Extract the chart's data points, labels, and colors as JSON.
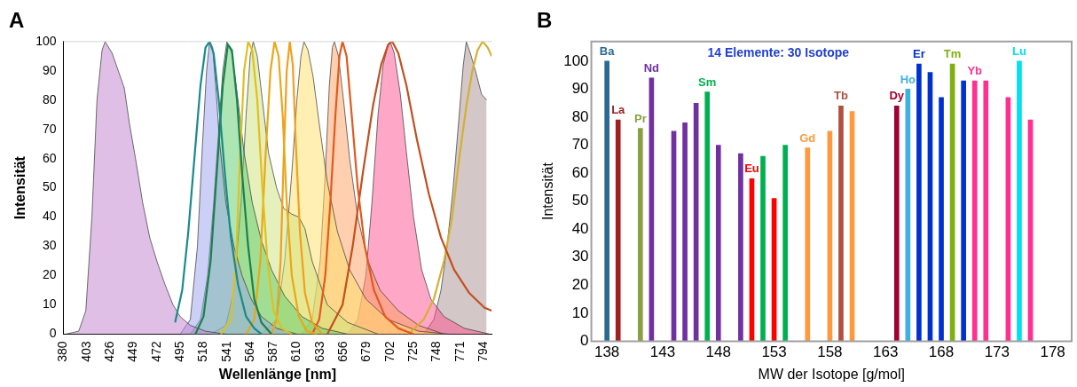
{
  "chart_data": [
    {
      "type": "area",
      "title": "A",
      "xlabel": "Wellenlänge [nm]",
      "ylabel": "Intensität",
      "xlim": [
        380,
        802
      ],
      "xticks": [
        380,
        403,
        426,
        449,
        472,
        495,
        518,
        541,
        564,
        587,
        610,
        633,
        656,
        679,
        702,
        725,
        748,
        771,
        794
      ],
      "ylim": [
        0,
        100
      ],
      "yticks": [
        0,
        10,
        20,
        30,
        40,
        50,
        60,
        70,
        80,
        90,
        100
      ],
      "legend": false,
      "series": [
        {
          "color": "#c27fd0",
          "x": [
            382,
            395,
            402,
            408,
            413,
            418,
            421,
            428,
            433,
            440,
            445,
            451,
            458,
            465,
            472,
            480,
            488,
            495,
            505,
            520,
            540
          ],
          "values": [
            0,
            1,
            8,
            40,
            80,
            97,
            100,
            96,
            91,
            84,
            72,
            60,
            45,
            33,
            25,
            17,
            10,
            6,
            3,
            1,
            0
          ]
        },
        {
          "color": "#9aa2ee",
          "x": [
            495,
            505,
            512,
            517,
            521,
            524,
            527,
            530,
            534,
            540,
            548,
            556,
            565,
            575,
            590,
            610
          ],
          "values": [
            0,
            5,
            30,
            65,
            90,
            100,
            98,
            85,
            65,
            45,
            30,
            20,
            12,
            6,
            2,
            0
          ]
        },
        {
          "type": "line",
          "color": "#1a8a8a",
          "x": [
            490,
            497,
            503,
            509,
            515,
            520,
            524,
            528,
            533,
            539,
            545,
            552,
            560,
            568,
            575
          ],
          "values": [
            4,
            15,
            35,
            60,
            85,
            98,
            100,
            96,
            80,
            55,
            33,
            17,
            6,
            2,
            0
          ]
        },
        {
          "color": "#5ccc6a",
          "x": [
            505,
            515,
            522,
            528,
            533,
            537,
            541,
            546,
            552,
            558,
            566,
            575,
            585,
            598,
            615,
            635,
            660
          ],
          "values": [
            0,
            5,
            20,
            45,
            70,
            90,
            100,
            96,
            80,
            62,
            45,
            32,
            22,
            13,
            6,
            2,
            0
          ]
        },
        {
          "type": "line",
          "color": "#1d7f4f",
          "x": [
            510,
            518,
            525,
            531,
            537,
            542,
            546,
            551,
            556,
            562,
            568,
            575,
            585
          ],
          "values": [
            0,
            6,
            25,
            55,
            85,
            99,
            97,
            80,
            55,
            30,
            12,
            4,
            0
          ]
        },
        {
          "color": "#cde27a",
          "x": [
            525,
            540,
            548,
            555,
            560,
            564,
            567,
            571,
            576,
            582,
            590,
            597,
            605,
            612,
            618,
            625,
            640,
            660,
            690
          ],
          "values": [
            0,
            3,
            15,
            45,
            75,
            95,
            100,
            95,
            80,
            62,
            50,
            43,
            41,
            40,
            36,
            25,
            10,
            4,
            0
          ]
        },
        {
          "type": "line",
          "color": "#e0c020",
          "x": [
            535,
            545,
            550,
            554,
            558,
            562,
            566,
            571,
            576,
            581,
            587,
            595,
            605
          ],
          "values": [
            0,
            5,
            25,
            60,
            90,
            100,
            97,
            80,
            50,
            25,
            8,
            2,
            0
          ]
        },
        {
          "type": "line",
          "color": "#e8a818",
          "x": [
            560,
            568,
            574,
            579,
            584,
            588,
            592,
            596,
            600,
            605,
            612,
            620,
            630
          ],
          "values": [
            0,
            5,
            25,
            60,
            90,
            100,
            95,
            75,
            45,
            20,
            6,
            1,
            0
          ]
        },
        {
          "type": "line",
          "color": "#f0a020",
          "x": [
            585,
            590,
            594,
            597,
            600,
            603,
            606,
            609,
            613,
            618,
            625,
            635
          ],
          "values": [
            0,
            5,
            25,
            60,
            90,
            100,
            92,
            65,
            35,
            14,
            4,
            0
          ]
        },
        {
          "color": "#ffe066",
          "x": [
            575,
            590,
            598,
            605,
            610,
            614,
            617,
            621,
            626,
            632,
            640,
            650,
            662,
            678,
            700,
            730,
            760
          ],
          "values": [
            0,
            5,
            25,
            55,
            80,
            95,
            100,
            97,
            88,
            72,
            52,
            35,
            22,
            12,
            5,
            1,
            0
          ]
        },
        {
          "color": "#ffa060",
          "x": [
            615,
            625,
            633,
            638,
            642,
            645,
            647,
            651,
            656,
            662,
            670,
            680,
            692,
            710,
            730,
            755
          ],
          "values": [
            0,
            5,
            25,
            55,
            85,
            98,
            100,
            95,
            80,
            60,
            40,
            25,
            15,
            8,
            3,
            0
          ]
        },
        {
          "type": "line",
          "color": "#e05a20",
          "x": [
            625,
            632,
            638,
            643,
            648,
            652,
            655,
            659,
            664,
            670,
            677,
            686,
            697,
            710,
            725
          ],
          "values": [
            0,
            5,
            20,
            45,
            75,
            95,
            100,
            95,
            75,
            50,
            30,
            15,
            6,
            2,
            0
          ]
        },
        {
          "color": "#ff5090",
          "x": [
            660,
            670,
            678,
            684,
            690,
            695,
            700,
            702,
            706,
            712,
            718,
            725,
            733,
            742,
            755,
            775,
            800
          ],
          "values": [
            0,
            5,
            20,
            45,
            75,
            92,
            99,
            100,
            96,
            82,
            62,
            40,
            22,
            12,
            6,
            2,
            0
          ]
        },
        {
          "type": "line",
          "color": "#c05020",
          "x": [
            640,
            655,
            665,
            675,
            685,
            693,
            700,
            704,
            710,
            718,
            728,
            740,
            752,
            765,
            780,
            795,
            802
          ],
          "values": [
            0,
            10,
            30,
            55,
            78,
            92,
            99,
            100,
            96,
            85,
            67,
            48,
            33,
            22,
            14,
            9,
            8
          ]
        },
        {
          "color": "#a89090",
          "x": [
            735,
            745,
            752,
            758,
            764,
            770,
            774,
            777,
            781,
            786,
            792,
            797
          ],
          "values": [
            0,
            5,
            15,
            30,
            50,
            75,
            92,
            100,
            96,
            90,
            82,
            80
          ]
        },
        {
          "type": "line",
          "color": "#d4b030",
          "x": [
            720,
            735,
            745,
            755,
            763,
            770,
            777,
            783,
            788,
            793,
            798,
            802
          ],
          "values": [
            0,
            5,
            12,
            25,
            40,
            60,
            78,
            90,
            97,
            100,
            98,
            95
          ]
        }
      ]
    },
    {
      "type": "bar",
      "title": "B",
      "xlabel": "MW der Isotope [g/mol]",
      "ylabel": "Intensität",
      "annotations": [
        "14 Elemente: 30 Isotope"
      ],
      "xlim": [
        136.6,
        179.7
      ],
      "xticks": [
        138,
        143,
        148,
        153,
        158,
        163,
        168,
        173,
        178
      ],
      "ylim": [
        0,
        107
      ],
      "yticks": [
        0,
        10,
        20,
        30,
        40,
        50,
        60,
        70,
        80,
        90,
        100
      ],
      "legend": false,
      "series": [
        {
          "name": "Ba",
          "color": "#2a6a90",
          "x": [
            138
          ],
          "values": [
            100
          ]
        },
        {
          "name": "La",
          "color": "#a02020",
          "x": [
            139
          ],
          "values": [
            79
          ]
        },
        {
          "name": "Pr",
          "color": "#8aa040",
          "x": [
            141
          ],
          "values": [
            76
          ]
        },
        {
          "name": "Nd",
          "color": "#7030a0",
          "x": [
            142,
            144,
            145,
            146,
            148,
            150
          ],
          "values": [
            94,
            75,
            78,
            85,
            70,
            67
          ]
        },
        {
          "name": "Eu",
          "color": "#ff0000",
          "x": [
            151,
            153
          ],
          "values": [
            58,
            51
          ]
        },
        {
          "name": "Sm",
          "color": "#00b050",
          "x": [
            147,
            152,
            154
          ],
          "values": [
            89,
            66,
            70
          ]
        },
        {
          "name": "Gd",
          "color": "#ff9940",
          "x": [
            156,
            158,
            160
          ],
          "values": [
            69,
            75,
            82
          ]
        },
        {
          "name": "Tb",
          "color": "#b05040",
          "x": [
            159
          ],
          "values": [
            84
          ]
        },
        {
          "name": "Dy",
          "color": "#a00030",
          "x": [
            164
          ],
          "values": [
            84
          ]
        },
        {
          "name": "Ho",
          "color": "#40b0e0",
          "x": [
            165
          ],
          "values": [
            90
          ]
        },
        {
          "name": "Er",
          "color": "#0030d0",
          "x": [
            166,
            167,
            168,
            170
          ],
          "values": [
            99,
            96,
            87,
            93
          ]
        },
        {
          "name": "Tm",
          "color": "#80b010",
          "x": [
            169
          ],
          "values": [
            99
          ]
        },
        {
          "name": "Yb",
          "color": "#ff3090",
          "x": [
            171,
            172,
            174,
            176
          ],
          "values": [
            93,
            93,
            87,
            79
          ]
        },
        {
          "name": "Lu",
          "color": "#00e0f0",
          "x": [
            175
          ],
          "values": [
            100
          ]
        }
      ]
    }
  ]
}
